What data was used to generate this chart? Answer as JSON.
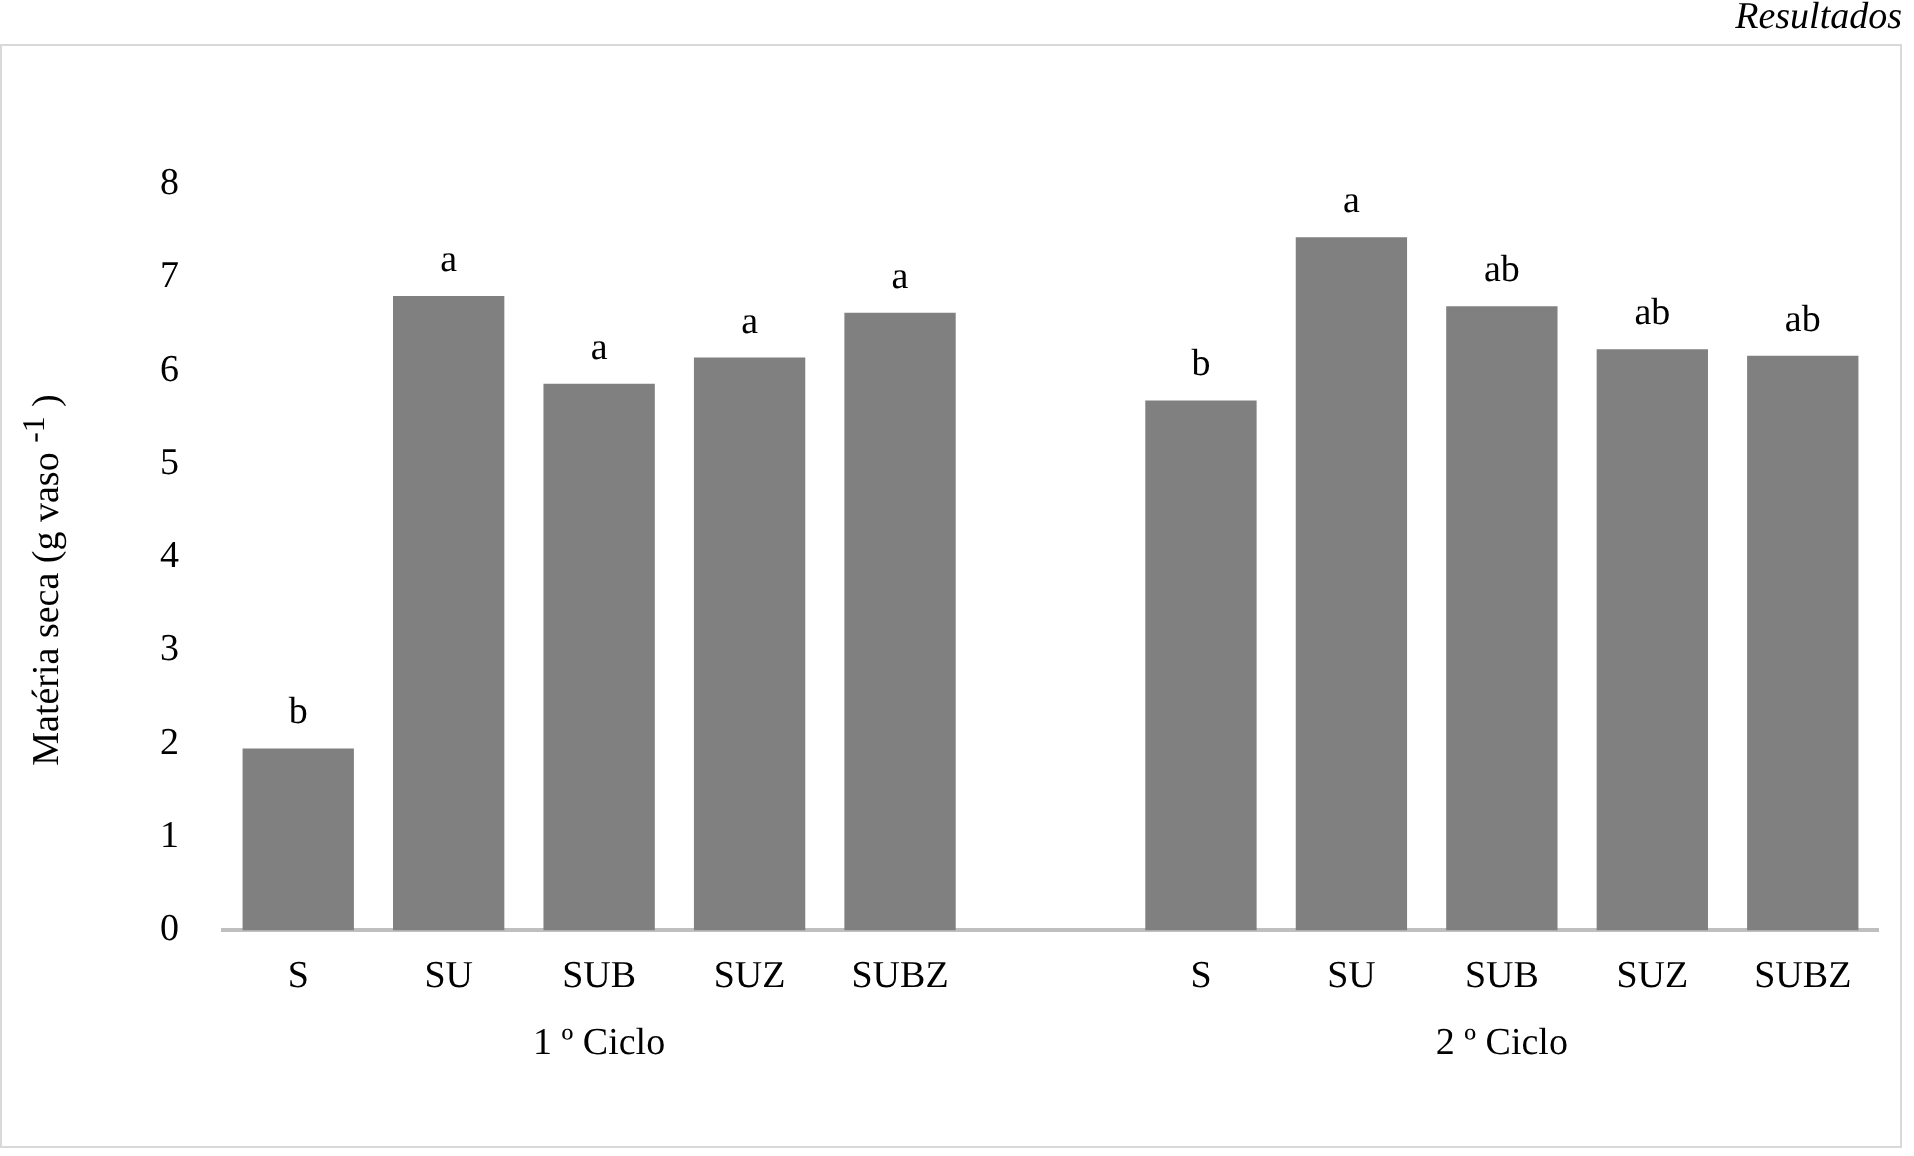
{
  "chart_data": {
    "type": "bar",
    "ylabel": "Matéria seca (g vaso $^{-1}$ )",
    "categories": [
      "S",
      "SU",
      "SUB",
      "SUZ",
      "SUBZ",
      null,
      "S",
      "SU",
      "SUB",
      "SUZ",
      "SUBZ"
    ],
    "values": [
      1.95,
      6.8,
      5.86,
      6.14,
      6.62,
      null,
      5.68,
      7.43,
      6.69,
      6.23,
      6.16
    ],
    "value_labels": [
      "b",
      "a",
      "a",
      "a",
      "a",
      null,
      "b",
      "a",
      "ab",
      "ab",
      "ab"
    ],
    "color": "#808080",
    "ylim": [
      0,
      8
    ],
    "yticks": [
      0,
      1,
      2,
      3,
      4,
      5,
      6,
      7,
      8
    ],
    "grid": false,
    "legend": false,
    "annotations": [
      "1 º Ciclo",
      "2 º Ciclo",
      "Resultados"
    ]
  }
}
